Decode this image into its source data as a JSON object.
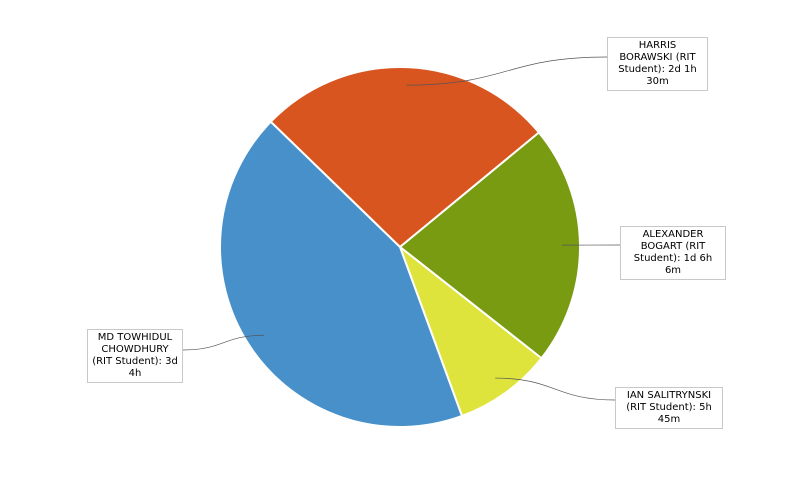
{
  "chart_data": {
    "type": "pie",
    "categories": [
      "HARRIS BORAWSKI (RIT Student): 2d 1h 30m",
      "ALEXANDER BOGART (RIT Student): 1d 6h 6m",
      "IAN SALITRYNSKI (RIT Student): 5h 45m",
      "MD TOWHIDUL CHOWDHURY (RIT Student): 3d 4h"
    ],
    "values": [
      17.5,
      14.1,
      5.75,
      28
    ],
    "colors": [
      "#d9551f",
      "#789b12",
      "#dee43c",
      "#4790c9"
    ]
  }
}
